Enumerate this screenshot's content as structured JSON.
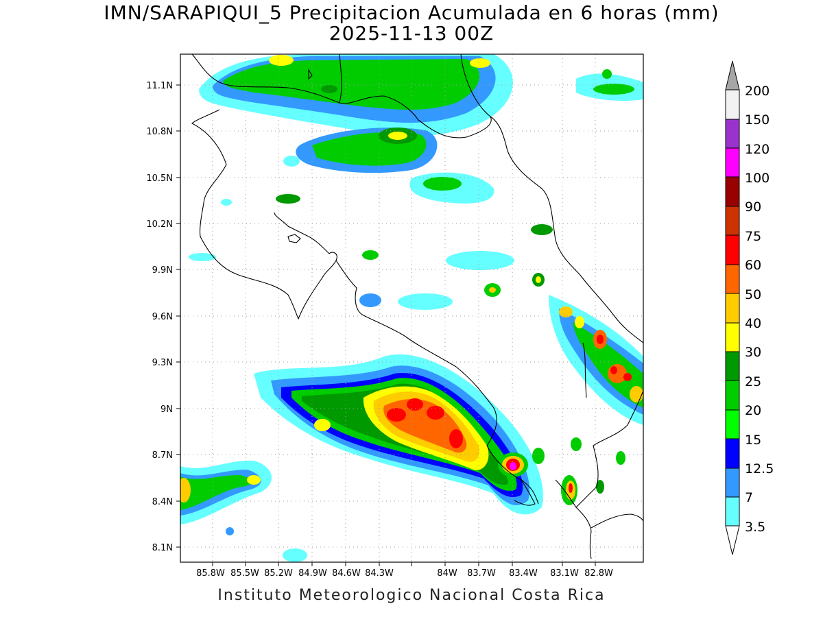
{
  "title": {
    "line1": "IMN/SARAPIQUI_5 Precipitacion Acumulada en 6 horas (mm)",
    "line2": "2025-11-13 00Z"
  },
  "footer": "Instituto Meteorologico Nacional Costa Rica",
  "map": {
    "lon_labels": [
      "85.8W",
      "85.5W",
      "85.2W",
      "84.9W",
      "84.6W",
      "84.3W",
      "84W",
      "83.7W",
      "83.4W",
      "83.1W",
      "82.8W"
    ],
    "lat_labels": [
      "11.1N",
      "10.8N",
      "10.5N",
      "10.2N",
      "9.9N",
      "9.6N",
      "9.3N",
      "9N",
      "8.7N",
      "8.4N",
      "8.1N"
    ]
  },
  "colorbar": {
    "unit": "mm",
    "levels": [
      "3.5",
      "7",
      "12.5",
      "15",
      "20",
      "25",
      "30",
      "40",
      "50",
      "60",
      "75",
      "90",
      "100",
      "120",
      "150",
      "200"
    ],
    "colors": [
      "#66ffff",
      "#3399ff",
      "#0000ff",
      "#00ff00",
      "#00cc00",
      "#009900",
      "#ffff00",
      "#ffcc00",
      "#ff6600",
      "#ff0000",
      "#cc3300",
      "#990000",
      "#ff00ff",
      "#9933cc",
      "#f2f2f2",
      "#a6a6a6"
    ]
  }
}
